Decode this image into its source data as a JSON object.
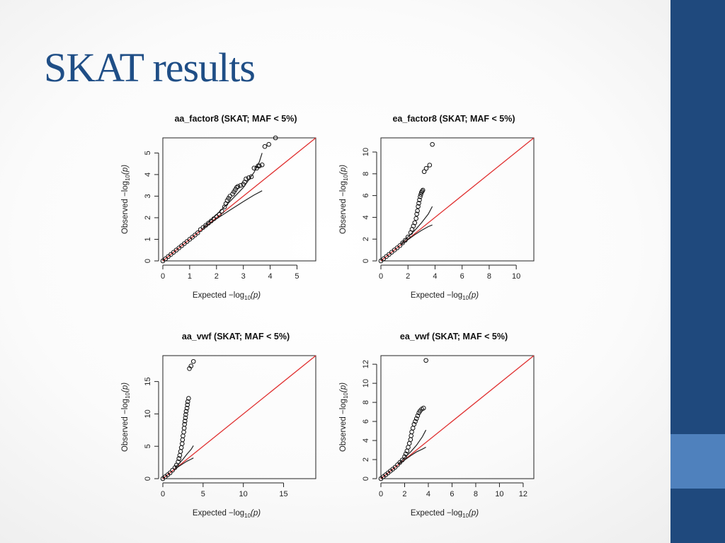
{
  "slide": {
    "title": "SKAT results",
    "colors": {
      "title": "#1f4e86",
      "bar": "#1f497d",
      "bar_accent": "#4f81bd",
      "diagonal": "#e03030"
    }
  },
  "chart_data": [
    {
      "type": "scatter",
      "title": "aa_factor8 (SKAT; MAF < 5%)",
      "xlabel_main": "Expected",
      "ylabel_main": "Observed",
      "axis_label_suffix": "−log",
      "axis_label_sub": "10",
      "axis_label_var": "(p)",
      "xlim": [
        0,
        5.7
      ],
      "ylim": [
        0,
        5.7
      ],
      "xticks": [
        "0",
        "1",
        "2",
        "3",
        "4",
        "5"
      ],
      "yticks": [
        "0",
        "1",
        "2",
        "3",
        "4",
        "5"
      ],
      "xtick_values": [
        0,
        1,
        2,
        3,
        4,
        5
      ],
      "ytick_values": [
        0,
        1,
        2,
        3,
        4,
        5
      ],
      "diagonal": true,
      "points": [
        [
          0,
          0
        ],
        [
          0.1,
          0.1
        ],
        [
          0.2,
          0.2
        ],
        [
          0.3,
          0.3
        ],
        [
          0.4,
          0.4
        ],
        [
          0.5,
          0.5
        ],
        [
          0.6,
          0.6
        ],
        [
          0.7,
          0.7
        ],
        [
          0.8,
          0.8
        ],
        [
          0.9,
          0.9
        ],
        [
          1.0,
          1.0
        ],
        [
          1.1,
          1.1
        ],
        [
          1.2,
          1.2
        ],
        [
          1.3,
          1.3
        ],
        [
          1.4,
          1.45
        ],
        [
          1.5,
          1.55
        ],
        [
          1.6,
          1.65
        ],
        [
          1.7,
          1.75
        ],
        [
          1.8,
          1.85
        ],
        [
          1.9,
          1.95
        ],
        [
          2.0,
          2.05
        ],
        [
          2.1,
          2.15
        ],
        [
          2.2,
          2.3
        ],
        [
          2.3,
          2.5
        ],
        [
          2.35,
          2.65
        ],
        [
          2.4,
          2.8
        ],
        [
          2.45,
          2.9
        ],
        [
          2.5,
          3.0
        ],
        [
          2.6,
          3.1
        ],
        [
          2.65,
          3.2
        ],
        [
          2.7,
          3.3
        ],
        [
          2.75,
          3.4
        ],
        [
          2.8,
          3.45
        ],
        [
          2.9,
          3.5
        ],
        [
          3.0,
          3.55
        ],
        [
          3.05,
          3.65
        ],
        [
          3.1,
          3.8
        ],
        [
          3.2,
          3.85
        ],
        [
          3.3,
          3.9
        ],
        [
          3.4,
          4.3
        ],
        [
          3.5,
          4.3
        ],
        [
          3.55,
          4.4
        ],
        [
          3.6,
          4.4
        ],
        [
          3.7,
          4.45
        ],
        [
          3.8,
          5.3
        ],
        [
          3.95,
          5.4
        ],
        [
          4.2,
          5.7
        ]
      ],
      "upper_band": [
        [
          1.5,
          1.55
        ],
        [
          2.0,
          2.15
        ],
        [
          2.5,
          2.75
        ],
        [
          3.0,
          3.4
        ],
        [
          3.4,
          4.1
        ],
        [
          3.6,
          4.6
        ],
        [
          3.7,
          5.0
        ]
      ],
      "lower_band": [
        [
          1.5,
          1.5
        ],
        [
          2.0,
          1.95
        ],
        [
          2.5,
          2.35
        ],
        [
          3.0,
          2.75
        ],
        [
          3.4,
          3.05
        ],
        [
          3.7,
          3.25
        ]
      ]
    },
    {
      "type": "scatter",
      "title": "ea_factor8 (SKAT; MAF < 5%)",
      "xlabel_main": "Expected",
      "ylabel_main": "Observed",
      "axis_label_suffix": "−log",
      "axis_label_sub": "10",
      "axis_label_var": "(p)",
      "xlim": [
        0,
        11.3
      ],
      "ylim": [
        0,
        11.3
      ],
      "xticks": [
        "0",
        "2",
        "4",
        "6",
        "8",
        "10"
      ],
      "yticks": [
        "0",
        "2",
        "4",
        "6",
        "8",
        "10"
      ],
      "xtick_values": [
        0,
        2,
        4,
        6,
        8,
        10
      ],
      "ytick_values": [
        0,
        2,
        4,
        6,
        8,
        10
      ],
      "diagonal": true,
      "points": [
        [
          0,
          0
        ],
        [
          0.2,
          0.2
        ],
        [
          0.4,
          0.4
        ],
        [
          0.6,
          0.6
        ],
        [
          0.8,
          0.8
        ],
        [
          1.0,
          1.0
        ],
        [
          1.2,
          1.2
        ],
        [
          1.4,
          1.4
        ],
        [
          1.6,
          1.65
        ],
        [
          1.8,
          1.9
        ],
        [
          2.0,
          2.2
        ],
        [
          2.2,
          2.6
        ],
        [
          2.3,
          2.9
        ],
        [
          2.4,
          3.2
        ],
        [
          2.5,
          3.5
        ],
        [
          2.6,
          3.9
        ],
        [
          2.65,
          4.3
        ],
        [
          2.7,
          4.6
        ],
        [
          2.75,
          5.0
        ],
        [
          2.8,
          5.3
        ],
        [
          2.85,
          5.6
        ],
        [
          2.9,
          5.9
        ],
        [
          2.95,
          6.1
        ],
        [
          3.0,
          6.3
        ],
        [
          3.05,
          6.4
        ],
        [
          3.1,
          6.5
        ],
        [
          3.2,
          8.2
        ],
        [
          3.35,
          8.5
        ],
        [
          3.6,
          8.8
        ],
        [
          3.8,
          10.7
        ]
      ],
      "upper_band": [
        [
          1.5,
          1.6
        ],
        [
          2.0,
          2.2
        ],
        [
          2.5,
          2.8
        ],
        [
          3.0,
          3.5
        ],
        [
          3.5,
          4.3
        ],
        [
          3.8,
          5.0
        ]
      ],
      "lower_band": [
        [
          1.5,
          1.5
        ],
        [
          2.0,
          1.95
        ],
        [
          2.5,
          2.4
        ],
        [
          3.0,
          2.8
        ],
        [
          3.5,
          3.15
        ],
        [
          3.8,
          3.3
        ]
      ]
    },
    {
      "type": "scatter",
      "title": "aa_vwf (SKAT; MAF < 5%)",
      "xlabel_main": "Expected",
      "ylabel_main": "Observed",
      "axis_label_suffix": "−log",
      "axis_label_sub": "10",
      "axis_label_var": "(p)",
      "xlim": [
        0,
        19
      ],
      "ylim": [
        0,
        19
      ],
      "xticks": [
        "0",
        "5",
        "10",
        "15"
      ],
      "yticks": [
        "0",
        "5",
        "10",
        "15"
      ],
      "xtick_values": [
        0,
        5,
        10,
        15
      ],
      "ytick_values": [
        0,
        5,
        10,
        15
      ],
      "diagonal": true,
      "points": [
        [
          0,
          0
        ],
        [
          0.3,
          0.3
        ],
        [
          0.6,
          0.6
        ],
        [
          0.9,
          0.9
        ],
        [
          1.2,
          1.3
        ],
        [
          1.5,
          1.7
        ],
        [
          1.7,
          2.1
        ],
        [
          1.9,
          2.6
        ],
        [
          2.0,
          3.1
        ],
        [
          2.1,
          3.6
        ],
        [
          2.2,
          4.2
        ],
        [
          2.3,
          4.8
        ],
        [
          2.4,
          5.4
        ],
        [
          2.45,
          6.0
        ],
        [
          2.5,
          6.6
        ],
        [
          2.6,
          7.2
        ],
        [
          2.65,
          7.8
        ],
        [
          2.7,
          8.4
        ],
        [
          2.75,
          8.9
        ],
        [
          2.8,
          9.4
        ],
        [
          2.85,
          9.9
        ],
        [
          2.9,
          10.4
        ],
        [
          3.0,
          10.9
        ],
        [
          3.05,
          11.4
        ],
        [
          3.1,
          11.9
        ],
        [
          3.2,
          12.4
        ],
        [
          3.3,
          17.0
        ],
        [
          3.5,
          17.4
        ],
        [
          3.8,
          18.1
        ]
      ],
      "upper_band": [
        [
          1.5,
          1.7
        ],
        [
          2.0,
          2.3
        ],
        [
          2.5,
          3.0
        ],
        [
          3.0,
          3.8
        ],
        [
          3.5,
          4.5
        ],
        [
          3.8,
          5.1
        ]
      ],
      "lower_band": [
        [
          1.5,
          1.5
        ],
        [
          2.0,
          1.9
        ],
        [
          2.5,
          2.3
        ],
        [
          3.0,
          2.7
        ],
        [
          3.5,
          3.0
        ],
        [
          3.8,
          3.2
        ]
      ]
    },
    {
      "type": "scatter",
      "title": "ea_vwf (SKAT; MAF < 5%)",
      "xlabel_main": "Expected",
      "ylabel_main": "Observed",
      "axis_label_suffix": "−log",
      "axis_label_sub": "10",
      "axis_label_var": "(p)",
      "xlim": [
        0,
        12.9
      ],
      "ylim": [
        0,
        12.9
      ],
      "xticks": [
        "0",
        "2",
        "4",
        "6",
        "8",
        "10",
        "12"
      ],
      "yticks": [
        "0",
        "2",
        "4",
        "6",
        "8",
        "10",
        "12"
      ],
      "xtick_values": [
        0,
        2,
        4,
        6,
        8,
        10,
        12
      ],
      "ytick_values": [
        0,
        2,
        4,
        6,
        8,
        10,
        12
      ],
      "diagonal": true,
      "points": [
        [
          0,
          0
        ],
        [
          0.2,
          0.2
        ],
        [
          0.4,
          0.4
        ],
        [
          0.6,
          0.6
        ],
        [
          0.8,
          0.8
        ],
        [
          1.0,
          1.0
        ],
        [
          1.2,
          1.2
        ],
        [
          1.4,
          1.45
        ],
        [
          1.6,
          1.7
        ],
        [
          1.8,
          1.95
        ],
        [
          2.0,
          2.3
        ],
        [
          2.1,
          2.6
        ],
        [
          2.2,
          2.9
        ],
        [
          2.3,
          3.3
        ],
        [
          2.4,
          3.7
        ],
        [
          2.5,
          4.1
        ],
        [
          2.55,
          4.5
        ],
        [
          2.6,
          4.9
        ],
        [
          2.7,
          5.3
        ],
        [
          2.8,
          5.7
        ],
        [
          2.9,
          6.0
        ],
        [
          3.0,
          6.3
        ],
        [
          3.1,
          6.6
        ],
        [
          3.2,
          6.9
        ],
        [
          3.3,
          7.1
        ],
        [
          3.45,
          7.3
        ],
        [
          3.6,
          7.4
        ],
        [
          3.8,
          12.4
        ]
      ],
      "upper_band": [
        [
          1.5,
          1.6
        ],
        [
          2.0,
          2.2
        ],
        [
          2.5,
          2.8
        ],
        [
          3.0,
          3.5
        ],
        [
          3.5,
          4.4
        ],
        [
          3.8,
          5.1
        ]
      ],
      "lower_band": [
        [
          1.5,
          1.5
        ],
        [
          2.0,
          1.95
        ],
        [
          2.5,
          2.4
        ],
        [
          3.0,
          2.8
        ],
        [
          3.5,
          3.1
        ],
        [
          3.8,
          3.3
        ]
      ]
    }
  ]
}
